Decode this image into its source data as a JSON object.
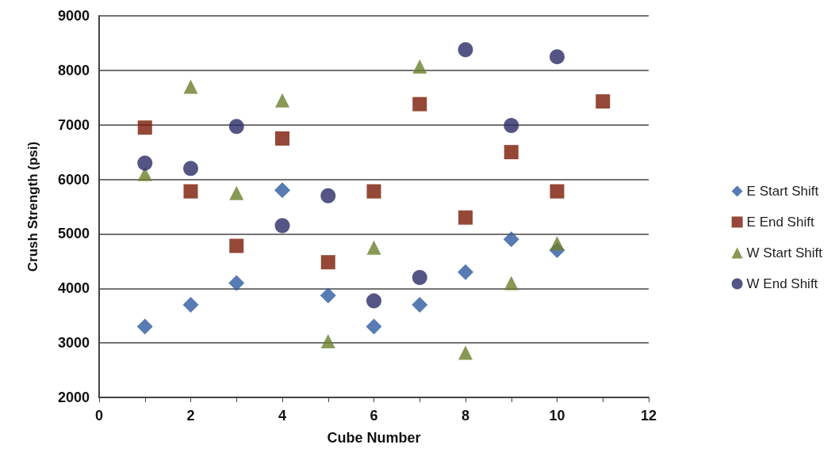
{
  "chart_data": {
    "type": "scatter",
    "xlabel": "Cube Number",
    "ylabel": "Crush Strength (psi)",
    "xlim": [
      0,
      12
    ],
    "xticks": [
      0,
      {
        "value": 1,
        "label": null
      },
      2,
      {
        "value": 3,
        "label": null
      },
      4,
      {
        "value": 5,
        "label": null
      },
      6,
      {
        "value": 7,
        "label": null
      },
      8,
      {
        "value": 9,
        "label": null
      },
      10,
      {
        "value": 11,
        "label": null
      },
      12
    ],
    "ylim": [
      2000,
      9000
    ],
    "yticks": [
      2000,
      3000,
      4000,
      5000,
      6000,
      7000,
      8000,
      9000
    ],
    "grid": "y",
    "legend": "right",
    "series": [
      {
        "name": "E Start Shift",
        "color": "#2e5aa0",
        "marker": "diamond",
        "x": [
          1,
          2,
          3,
          4,
          5,
          6,
          7,
          8,
          9,
          10
        ],
        "values": [
          3300,
          3700,
          4100,
          5800,
          3870,
          3300,
          3700,
          4300,
          4900,
          4700
        ]
      },
      {
        "name": "E End Shift",
        "color": "#7a1a05",
        "marker": "square",
        "x": [
          1,
          2,
          3,
          4,
          5,
          6,
          7,
          8,
          9,
          10,
          11
        ],
        "values": [
          6950,
          5780,
          4780,
          6750,
          4480,
          5780,
          7380,
          5300,
          6500,
          5780,
          7430
        ]
      },
      {
        "name": "W Start Shift",
        "color": "#6b7f2a",
        "marker": "triangle",
        "x": [
          1,
          2,
          3,
          4,
          5,
          6,
          7,
          8,
          9,
          10
        ],
        "values": [
          6100,
          7700,
          5750,
          7450,
          3030,
          4750,
          8070,
          2820,
          4100,
          4830
        ]
      },
      {
        "name": "W End Shift",
        "color": "#2a2a66",
        "marker": "circle",
        "x": [
          1,
          2,
          3,
          4,
          5,
          6,
          7,
          8,
          9,
          10
        ],
        "values": [
          6300,
          6200,
          6970,
          5150,
          5700,
          3770,
          4200,
          8380,
          6990,
          8250
        ]
      }
    ]
  }
}
